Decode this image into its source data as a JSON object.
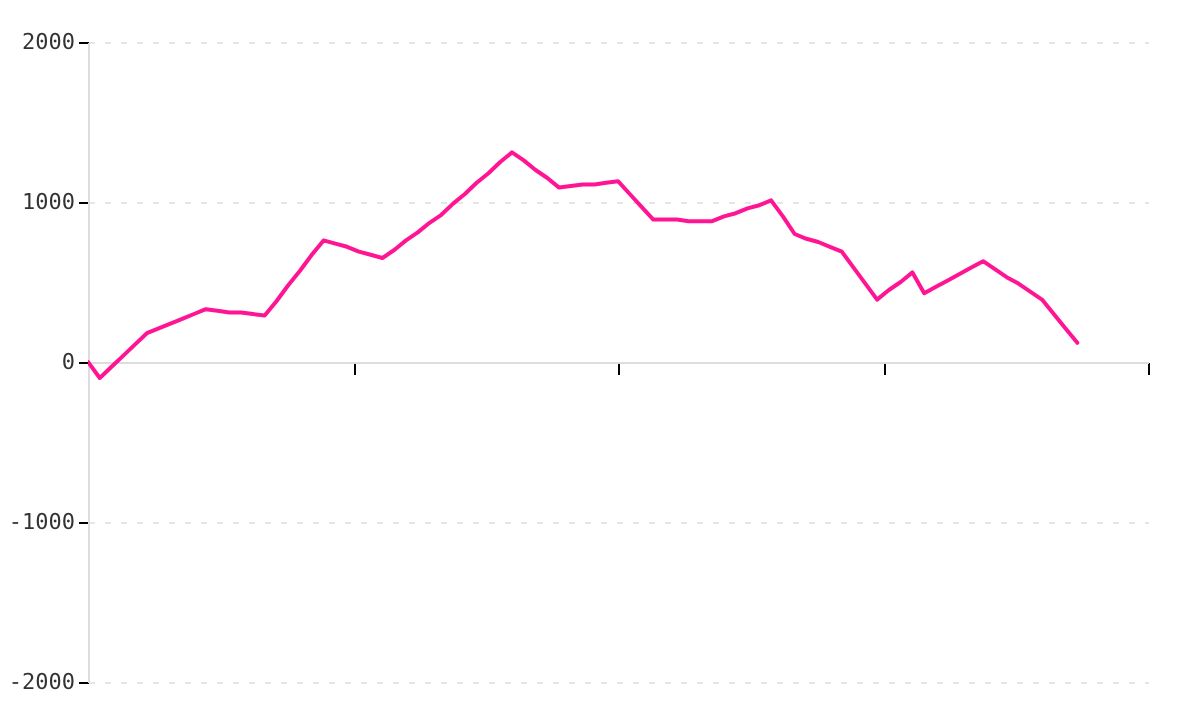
{
  "chart_data": {
    "type": "line",
    "categories": [
      null,
      null,
      null,
      null,
      null,
      null,
      null,
      null,
      null,
      null,
      null,
      null,
      null,
      null,
      null,
      null,
      null,
      null,
      null,
      null,
      null,
      null,
      null,
      null,
      null,
      null,
      null,
      null,
      null,
      null,
      null,
      null,
      null,
      null,
      null,
      null,
      null,
      null,
      null,
      null,
      null,
      null,
      null,
      null,
      null,
      null,
      null,
      null,
      null,
      null,
      null,
      null,
      null,
      null,
      null,
      null,
      null,
      null,
      null,
      null,
      null,
      null,
      null,
      null,
      null,
      null,
      null,
      null,
      null,
      null,
      null,
      null,
      null,
      null,
      null,
      null,
      null,
      null,
      null,
      null,
      null,
      null,
      null,
      null,
      null,
      null,
      null,
      null,
      null,
      null,
      null
    ],
    "series": [
      {
        "color": "#ff1493",
        "values": [
          0,
          -100,
          -30,
          40,
          110,
          180,
          210,
          240,
          270,
          300,
          330,
          320,
          310,
          310,
          300,
          290,
          380,
          480,
          570,
          670,
          760,
          740,
          720,
          690,
          670,
          650,
          700,
          760,
          810,
          870,
          920,
          990,
          1050,
          1120,
          1180,
          1250,
          1310,
          1260,
          1200,
          1150,
          1090,
          1100,
          1110,
          1110,
          1120,
          1130,
          1050,
          970,
          890,
          890,
          890,
          880,
          880,
          880,
          910,
          930,
          960,
          980,
          1010,
          910,
          800,
          770,
          750,
          720,
          690,
          590,
          490,
          390,
          450,
          500,
          560,
          430,
          470,
          510,
          550,
          590,
          630,
          580,
          530,
          490,
          440,
          390,
          300,
          210,
          120,
          null,
          null,
          null,
          null,
          null,
          null
        ]
      }
    ],
    "ylim": [
      -2000,
      2000
    ],
    "yticks": [
      -2000,
      -1000,
      0,
      1000,
      2000
    ],
    "grid": "y",
    "marker": "none",
    "line_style": "solid"
  }
}
